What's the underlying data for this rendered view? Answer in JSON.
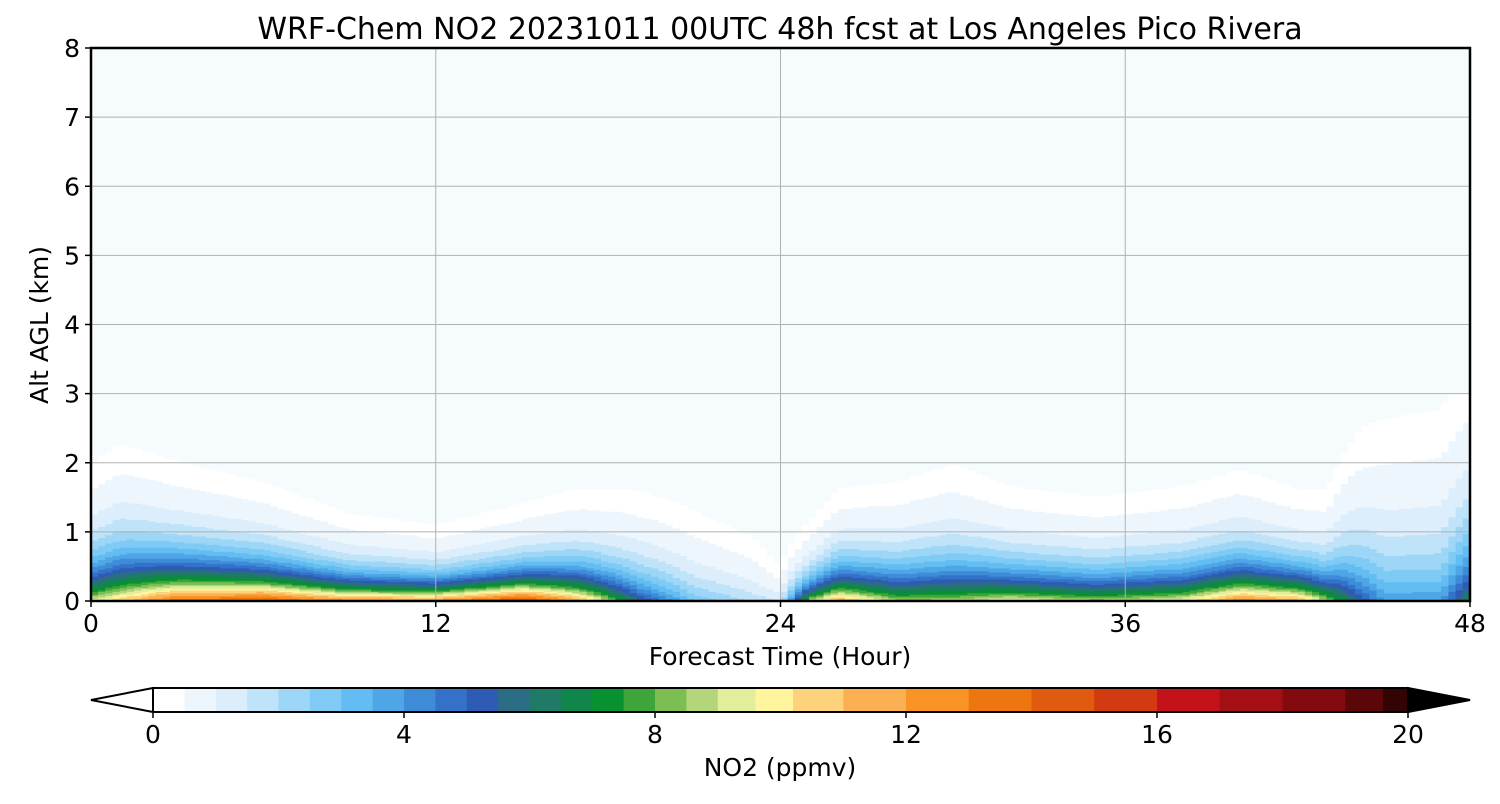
{
  "chart_data": {
    "type": "heatmap",
    "title": "WRF-Chem NO2  20231011 00UTC 48h fcst at Los Angeles Pico Rivera",
    "xlabel": "Forecast Time (Hour)",
    "ylabel": "Alt AGL (km)",
    "xlim": [
      0,
      48
    ],
    "ylim": [
      0,
      8
    ],
    "x_ticks": [
      "0",
      "12",
      "24",
      "36",
      "48"
    ],
    "y_ticks": [
      "0",
      "1",
      "2",
      "3",
      "4",
      "5",
      "6",
      "7",
      "8"
    ],
    "grid": true,
    "colorbar": {
      "label": "NO2  (ppmv)",
      "range": [
        0,
        20
      ],
      "ticks": [
        "0",
        "4",
        "8",
        "12",
        "16",
        "20"
      ],
      "extend": "both",
      "colors": [
        "#ffffff",
        "#eef6fd",
        "#dceefb",
        "#bfe3f8",
        "#9dd6f6",
        "#7fcbf5",
        "#63bdf2",
        "#4fa6e6",
        "#3e8cd7",
        "#3372c8",
        "#2e5bb3",
        "#2a6d84",
        "#1f7b66",
        "#11864a",
        "#079130",
        "#3ea53a",
        "#7cbd54",
        "#b3d67a",
        "#e2ee9c",
        "#fff59d",
        "#fdd27a",
        "#fbb153",
        "#f99325",
        "#ee7611",
        "#e05a10",
        "#d23b12",
        "#c4121a",
        "#a40e15",
        "#830b10",
        "#5b0709",
        "#320404",
        "#000000"
      ],
      "level_values": [
        0,
        0.5,
        1,
        1.5,
        2,
        2.5,
        3,
        3.5,
        4,
        4.5,
        5,
        5.5,
        6,
        6.5,
        7,
        7.5,
        8,
        8.5,
        9,
        9.6,
        10.2,
        11,
        12,
        13,
        14,
        15,
        16,
        17,
        18,
        19,
        19.6,
        20
      ]
    },
    "profile_hours": [
      0,
      1,
      3,
      6,
      9,
      12,
      15,
      17,
      18,
      19,
      21,
      23,
      24,
      25,
      26,
      28,
      30,
      32,
      35,
      38,
      40,
      42,
      43,
      44,
      45,
      47,
      48
    ],
    "profile_surface_no2_ppmv": [
      9.5,
      11,
      14,
      15,
      13,
      13,
      16,
      12,
      9,
      6,
      3,
      2,
      1.5,
      9,
      12,
      9,
      9,
      10,
      9,
      10,
      13,
      12,
      9,
      6,
      4,
      4,
      7
    ],
    "profile_scale_height_km": [
      0.55,
      0.6,
      0.5,
      0.42,
      0.32,
      0.28,
      0.34,
      0.42,
      0.45,
      0.5,
      0.52,
      0.45,
      0.28,
      0.32,
      0.42,
      0.48,
      0.55,
      0.45,
      0.42,
      0.45,
      0.48,
      0.42,
      0.45,
      0.75,
      0.95,
      1.0,
      1.0
    ]
  }
}
